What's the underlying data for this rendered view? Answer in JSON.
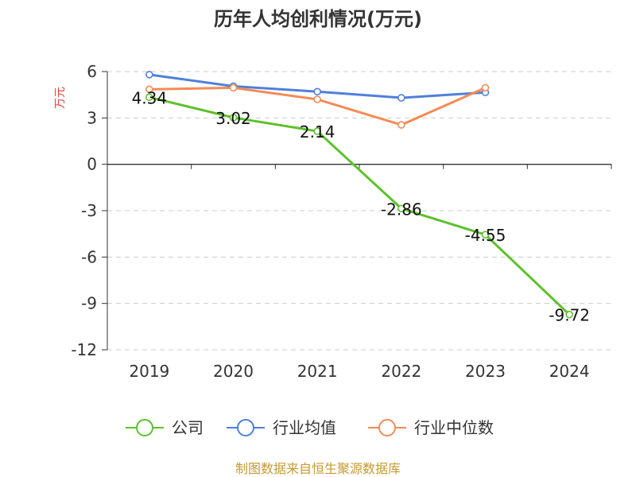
{
  "chart_data": {
    "type": "line",
    "title": "历年人均创利情况(万元)",
    "ylabel": "万元",
    "categories": [
      "2019",
      "2020",
      "2021",
      "2022",
      "2023",
      "2024"
    ],
    "ylim": [
      -12,
      6
    ],
    "yticks": [
      6,
      3,
      0,
      -3,
      -6,
      -9,
      -12
    ],
    "grid": true,
    "legend_position": "bottom",
    "series": [
      {
        "name": "公司",
        "color": "#5dc12b",
        "values": [
          4.34,
          3.02,
          2.14,
          -2.86,
          -4.55,
          -9.72
        ],
        "labels": [
          "4.34",
          "3.02",
          "2.14",
          "-2.86",
          "-4.55",
          "-9.72"
        ]
      },
      {
        "name": "行业均值",
        "color": "#4e80dc",
        "values": [
          5.8,
          5.05,
          4.7,
          4.3,
          4.65,
          null
        ]
      },
      {
        "name": "行业中位数",
        "color": "#f58b56",
        "values": [
          4.85,
          4.95,
          4.2,
          2.55,
          4.95,
          null
        ]
      }
    ]
  },
  "footer": {
    "source": "制图数据来自恒生聚源数据库"
  }
}
